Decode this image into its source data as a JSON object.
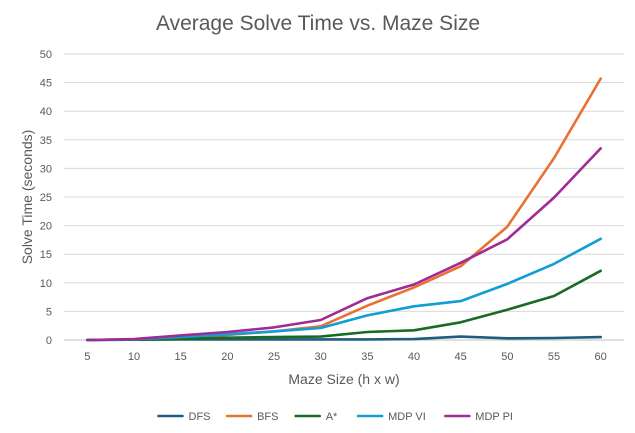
{
  "chart_data": {
    "type": "line",
    "title": "Average Solve Time vs. Maze Size",
    "xlabel": "Maze Size (h x w)",
    "ylabel": "Solve Time (seconds)",
    "categories": [
      "5",
      "10",
      "15",
      "20",
      "25",
      "30",
      "35",
      "40",
      "45",
      "50",
      "55",
      "60"
    ],
    "ylim": [
      0,
      50
    ],
    "yticks": [
      0,
      5,
      10,
      15,
      20,
      25,
      30,
      35,
      40,
      45,
      50
    ],
    "grid": true,
    "legend_position": "bottom",
    "series": [
      {
        "name": "DFS",
        "color": "#1f5c7f",
        "values": [
          0,
          0.05,
          0.1,
          0.1,
          0.1,
          0.1,
          0.1,
          0.15,
          0.6,
          0.3,
          0.35,
          0.5
        ]
      },
      {
        "name": "BFS",
        "color": "#e97132",
        "values": [
          0,
          0.1,
          0.4,
          0.9,
          1.5,
          2.4,
          6.0,
          9.2,
          12.9,
          19.8,
          31.8,
          45.7
        ]
      },
      {
        "name": "A*",
        "color": "#196b24",
        "values": [
          0,
          0.05,
          0.2,
          0.4,
          0.5,
          0.6,
          1.4,
          1.7,
          3.1,
          5.3,
          7.7,
          12.1
        ]
      },
      {
        "name": "MDP VI",
        "color": "#0f9ed5",
        "values": [
          0,
          0.1,
          0.5,
          1.0,
          1.5,
          2.1,
          4.3,
          5.9,
          6.8,
          9.8,
          13.3,
          17.7
        ]
      },
      {
        "name": "MDP PI",
        "color": "#a02b93",
        "values": [
          0,
          0.15,
          0.8,
          1.4,
          2.2,
          3.5,
          7.3,
          9.7,
          13.5,
          17.6,
          24.9,
          33.5
        ]
      }
    ]
  }
}
